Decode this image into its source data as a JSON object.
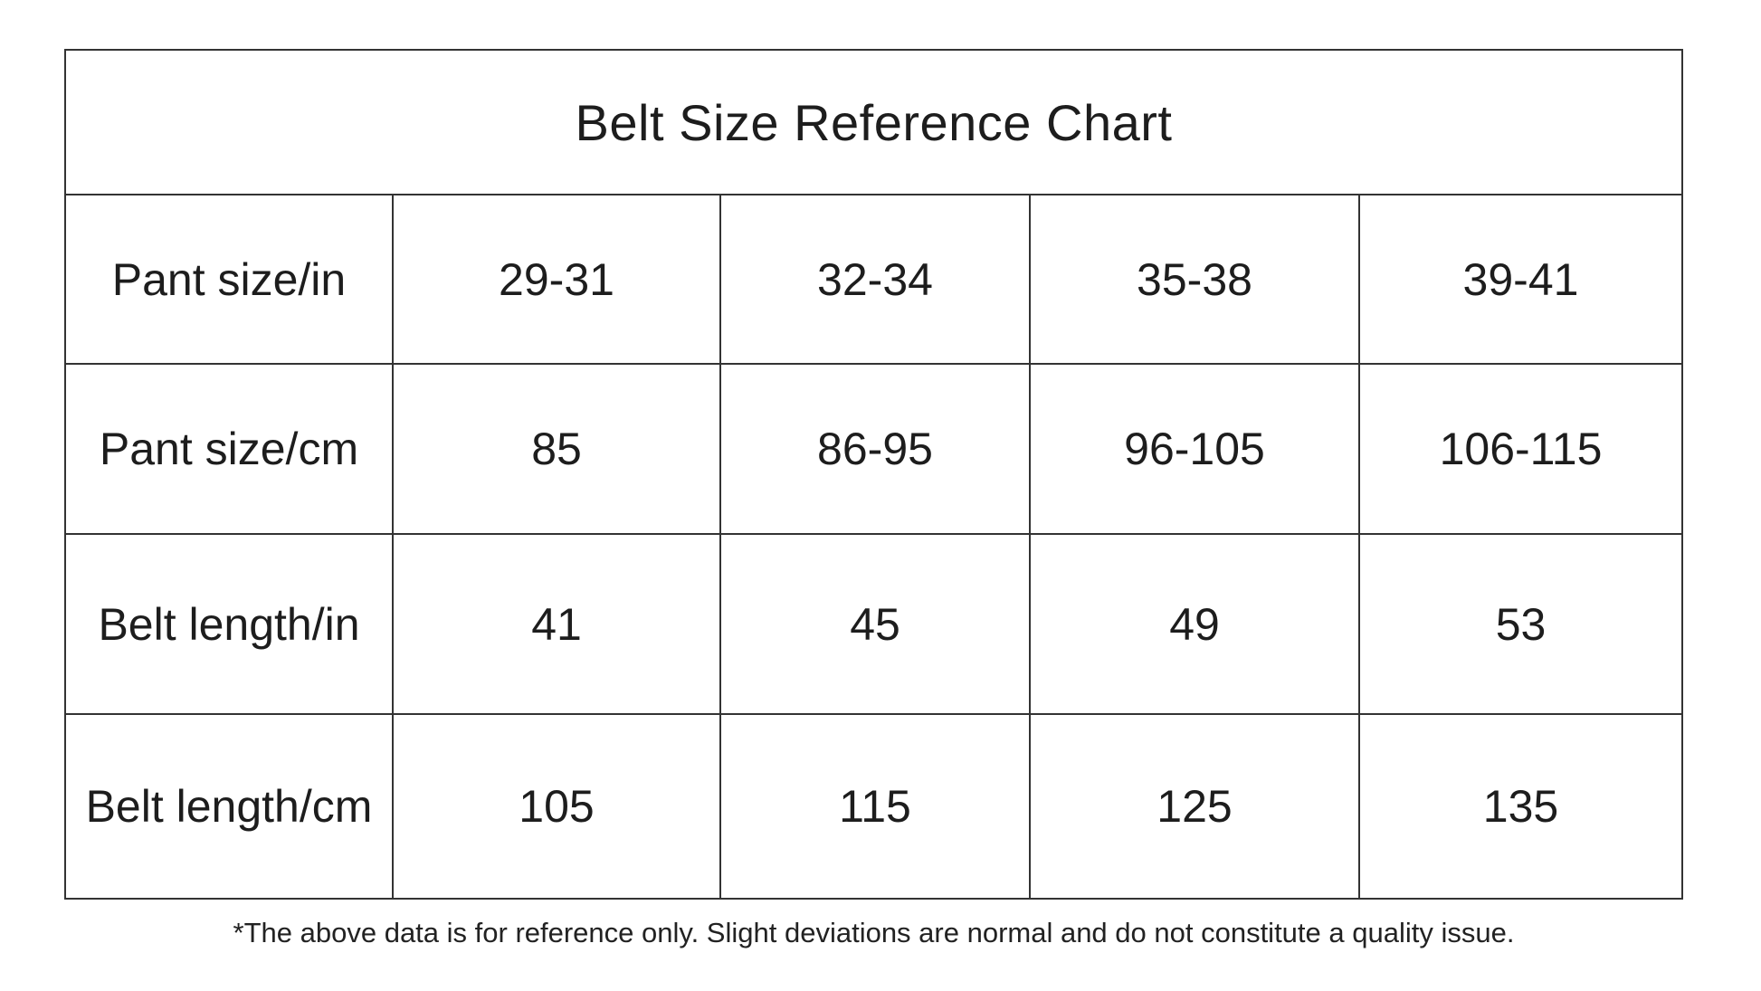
{
  "chart_data": {
    "type": "table",
    "title": "Belt Size Reference Chart",
    "row_headers": [
      "Pant size/in",
      "Pant size/cm",
      "Belt length/in",
      "Belt length/cm"
    ],
    "rows": [
      [
        "29-31",
        "32-34",
        "35-38",
        "39-41"
      ],
      [
        "85",
        "86-95",
        "96-105",
        "106-115"
      ],
      [
        "41",
        "45",
        "49",
        "53"
      ],
      [
        "105",
        "115",
        "125",
        "135"
      ]
    ],
    "footnote": "*The above data is for reference only. Slight deviations are normal and do not constitute a quality issue.",
    "layout": {
      "title_position": "top-merged-row",
      "grid_lines": "on",
      "columns": 5,
      "data_rows": 4
    }
  },
  "colors": {
    "text": "#1d1d1d",
    "border": "#333333",
    "background": "#ffffff"
  }
}
